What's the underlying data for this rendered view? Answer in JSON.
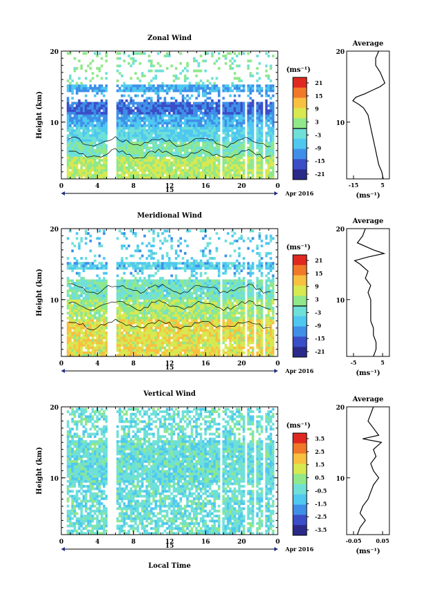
{
  "panels": [
    {
      "title": "Zonal Wind",
      "ylabel": "Height (km)",
      "unit": "(ms⁻¹)",
      "colorbar_ticks": [
        "21",
        "15",
        "9",
        "3",
        "-3",
        "-9",
        "-15",
        "-21"
      ],
      "avg_title": "Average",
      "avg_xticks": [
        "-15",
        "5"
      ],
      "avg_unit": "(ms⁻¹)"
    },
    {
      "title": "Meridional Wind",
      "ylabel": "Height (km)",
      "unit": "(ms⁻¹)",
      "colorbar_ticks": [
        "21",
        "15",
        "9",
        "3",
        "-3",
        "-9",
        "-15",
        "-21"
      ],
      "avg_title": "Average",
      "avg_xticks": [
        "-5",
        "5"
      ],
      "avg_unit": "(ms⁻¹)"
    },
    {
      "title": "Vertical Wind",
      "ylabel": "Height (km)",
      "unit": "(ms⁻¹)",
      "colorbar_ticks": [
        "3.5",
        "2.5",
        "1.5",
        "0.5",
        "-0.5",
        "-1.5",
        "-2.5",
        "-3.5"
      ],
      "avg_title": "Average",
      "avg_xticks": [
        "-0.05",
        "0.05"
      ],
      "avg_unit": "(ms⁻¹)"
    }
  ],
  "shared": {
    "xticks": [
      "0",
      "4",
      "8",
      "12",
      "16",
      "20",
      "0"
    ],
    "yticks": [
      "20",
      "10"
    ],
    "day_label": "15",
    "date_label": "Apr 2016",
    "xlabel": "Local Time"
  },
  "colors": {
    "palette": [
      "#2a2a8a",
      "#3a4ec8",
      "#3f8fe8",
      "#4fc8f0",
      "#6fe0d8",
      "#90e88a",
      "#d8e850",
      "#f8c040",
      "#f07828",
      "#e02820"
    ]
  },
  "chart_data": [
    {
      "type": "heatmap",
      "title": "Zonal Wind",
      "ylabel": "Height (km)",
      "xlim": [
        0,
        24
      ],
      "ylim": [
        2,
        20
      ],
      "color_range": [
        -21,
        21
      ],
      "profile_xlim": [
        -20,
        8
      ],
      "profile": {
        "height": [
          2,
          3,
          4,
          5,
          6,
          7,
          8,
          9,
          10,
          11,
          12,
          12.5,
          13,
          13.5,
          14,
          14.5,
          15,
          15.5,
          16,
          17,
          18,
          19,
          20
        ],
        "value": [
          4,
          3,
          1,
          0,
          -1,
          -2,
          -3,
          -4,
          -5,
          -6,
          -9,
          -12,
          -16,
          -14,
          -8,
          -3,
          2,
          5,
          4,
          2,
          -1,
          -1,
          1
        ]
      }
    },
    {
      "type": "heatmap",
      "title": "Meridional Wind",
      "ylabel": "Height (km)",
      "xlim": [
        0,
        24
      ],
      "ylim": [
        2,
        20
      ],
      "color_range": [
        -21,
        21
      ],
      "profile_xlim": [
        -8,
        8
      ],
      "profile": {
        "height": [
          2,
          3,
          4,
          5,
          6,
          7,
          8,
          9,
          10,
          11,
          12,
          13,
          14,
          15,
          15.5,
          16,
          16.5,
          17,
          18,
          19,
          20
        ],
        "value": [
          2,
          3,
          3,
          2,
          2,
          1,
          1,
          1,
          1,
          0,
          1,
          -1,
          0,
          -3,
          -5,
          0,
          6,
          2,
          -4,
          -2,
          -1
        ]
      }
    },
    {
      "type": "heatmap",
      "title": "Vertical Wind",
      "ylabel": "Height (km)",
      "xlim": [
        0,
        24
      ],
      "ylim": [
        2,
        20
      ],
      "color_range": [
        -3.5,
        3.5
      ],
      "profile_xlim": [
        -0.08,
        0.08
      ],
      "profile": {
        "height": [
          2,
          3,
          4,
          5,
          6,
          7,
          8,
          9,
          10,
          11,
          12,
          13,
          14,
          15,
          15.5,
          16,
          17,
          18,
          19,
          20
        ],
        "value": [
          -0.04,
          -0.03,
          -0.01,
          -0.03,
          -0.02,
          0.0,
          0.01,
          0.02,
          0.04,
          0.02,
          0.01,
          0.03,
          0.02,
          0.05,
          -0.02,
          0.04,
          0.02,
          0.0,
          0.01,
          0.02
        ]
      }
    }
  ]
}
